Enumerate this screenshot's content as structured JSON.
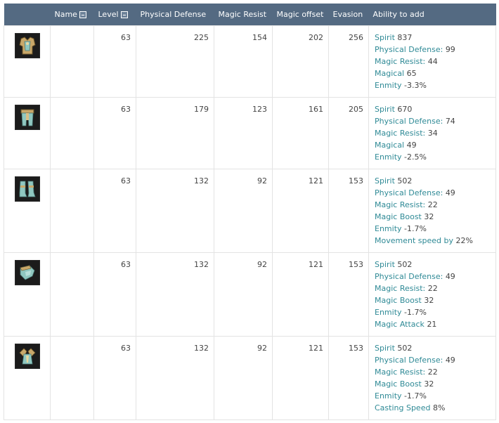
{
  "columns": {
    "icon": "",
    "name": "Name",
    "level": "Level",
    "physical_defense": "Physical Defense",
    "magic_resist": "Magic Resist",
    "magic_offset": "Magic offset",
    "evasion": "Evasion",
    "ability": "Ability to add"
  },
  "colors": {
    "header_bg": "#546a82",
    "header_text": "#ffffff",
    "stat_label": "#2f8a96",
    "border": "#e3e3e3"
  },
  "rows": [
    {
      "icon": "chest-armor-icon",
      "level": "63",
      "physical_defense": "225",
      "magic_resist": "154",
      "magic_offset": "202",
      "evasion": "256",
      "abilities": [
        {
          "label": "Spirit",
          "value": "837"
        },
        {
          "label": "Physical Defense:",
          "value": "99"
        },
        {
          "label": "Magic Resist:",
          "value": "44"
        },
        {
          "label": "Magical",
          "value": "65"
        },
        {
          "label": "Enmity",
          "value": "-3.3%"
        }
      ]
    },
    {
      "icon": "leg-armor-icon",
      "level": "63",
      "physical_defense": "179",
      "magic_resist": "123",
      "magic_offset": "161",
      "evasion": "205",
      "abilities": [
        {
          "label": "Spirit",
          "value": "670"
        },
        {
          "label": "Physical Defense:",
          "value": "74"
        },
        {
          "label": "Magic Resist:",
          "value": "34"
        },
        {
          "label": "Magical",
          "value": "49"
        },
        {
          "label": "Enmity",
          "value": "-2.5%"
        }
      ]
    },
    {
      "icon": "boots-icon",
      "level": "63",
      "physical_defense": "132",
      "magic_resist": "92",
      "magic_offset": "121",
      "evasion": "153",
      "abilities": [
        {
          "label": "Spirit",
          "value": "502"
        },
        {
          "label": "Physical Defense:",
          "value": "49"
        },
        {
          "label": "Magic Resist:",
          "value": "22"
        },
        {
          "label": "Magic Boost",
          "value": "32"
        },
        {
          "label": "Enmity",
          "value": "-1.7%"
        },
        {
          "label": "Movement speed by",
          "value": "22%"
        }
      ]
    },
    {
      "icon": "gloves-icon",
      "level": "63",
      "physical_defense": "132",
      "magic_resist": "92",
      "magic_offset": "121",
      "evasion": "153",
      "abilities": [
        {
          "label": "Spirit",
          "value": "502"
        },
        {
          "label": "Physical Defense:",
          "value": "49"
        },
        {
          "label": "Magic Resist:",
          "value": "22"
        },
        {
          "label": "Magic Boost",
          "value": "32"
        },
        {
          "label": "Enmity",
          "value": "-1.7%"
        },
        {
          "label": "Magic Attack",
          "value": "21"
        }
      ]
    },
    {
      "icon": "shoulder-armor-icon",
      "level": "63",
      "physical_defense": "132",
      "magic_resist": "92",
      "magic_offset": "121",
      "evasion": "153",
      "abilities": [
        {
          "label": "Spirit",
          "value": "502"
        },
        {
          "label": "Physical Defense:",
          "value": "49"
        },
        {
          "label": "Magic Resist:",
          "value": "22"
        },
        {
          "label": "Magic Boost",
          "value": "32"
        },
        {
          "label": "Enmity",
          "value": "-1.7%"
        },
        {
          "label": "Casting Speed",
          "value": "8%"
        }
      ]
    }
  ]
}
